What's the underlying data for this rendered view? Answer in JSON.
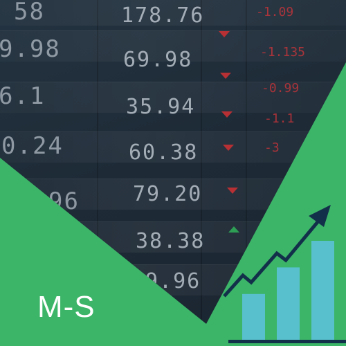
{
  "brand": {
    "logo_text": "M-S"
  },
  "ticker": {
    "left_values": [
      "58",
      "9.98",
      "6.1",
      "0.24",
      "96",
      "",
      ""
    ],
    "prices": [
      "178.76",
      "69.98",
      "35.94",
      "60.38",
      "79.20",
      "38.38",
      "9.96"
    ],
    "changes": [
      "-1.09",
      "-1.135",
      "-0.99",
      "-1.1",
      "-3",
      "",
      ""
    ],
    "directions": [
      "down",
      "down",
      "down",
      "down",
      "down",
      "up",
      "none"
    ]
  },
  "growth_chart": {
    "bar_values": [
      0.35,
      0.55,
      0.75
    ],
    "trend": "up",
    "colors": {
      "bar": "#58c0cc",
      "arrow": "#13304a",
      "baseline": "#13304a",
      "background": "#3cb568",
      "board": "#1e2b37"
    }
  }
}
